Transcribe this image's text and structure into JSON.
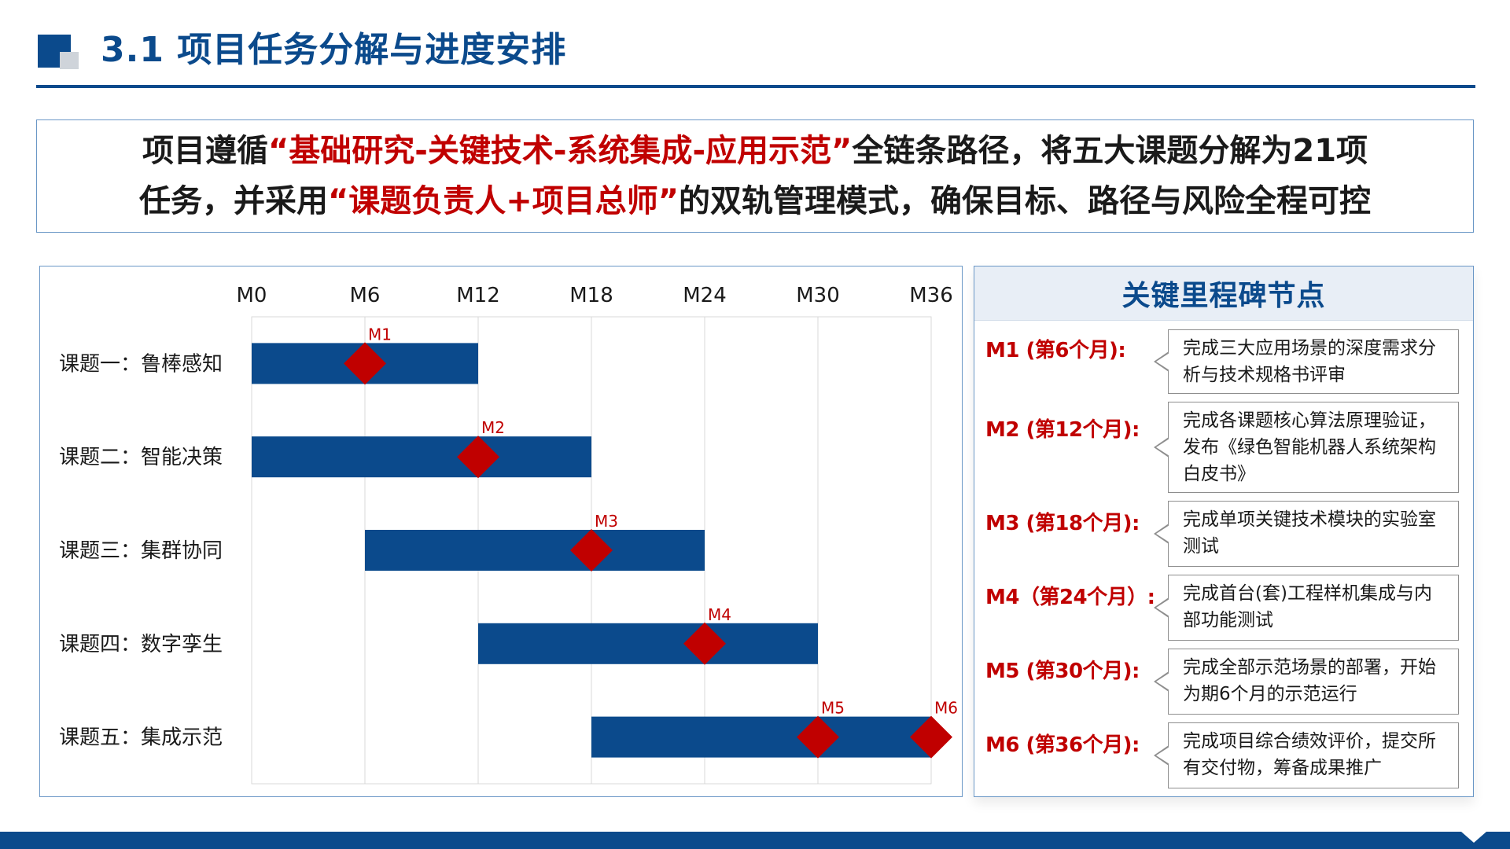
{
  "header": {
    "title": "3.1  项目任务分解与进度安排"
  },
  "intro": {
    "line1_prefix": "项目遵循",
    "line1_highlight": "“基础研究-关键技术-系统集成-应用示范”",
    "line1_suffix": "全链条路径，将五大课题分解为21项",
    "line2_prefix": "任务，并采用",
    "line2_highlight": "“课题负责人+项目总师”",
    "line2_suffix": "的双轨管理模式，确保目标、路径与风险全程可控"
  },
  "chart_data": {
    "type": "gantt",
    "x_ticks": [
      "M0",
      "M6",
      "M12",
      "M18",
      "M24",
      "M30",
      "M36"
    ],
    "xlim": [
      0,
      36
    ],
    "grid": true,
    "tasks": [
      {
        "label": "课题一：鲁棒感知",
        "start": 0,
        "end": 12
      },
      {
        "label": "课题二：智能决策",
        "start": 0,
        "end": 18
      },
      {
        "label": "课题三：集群协同",
        "start": 6,
        "end": 24
      },
      {
        "label": "课题四：数字孪生",
        "start": 12,
        "end": 30
      },
      {
        "label": "课题五：集成示范",
        "start": 18,
        "end": 36
      }
    ],
    "milestones": [
      {
        "name": "M1",
        "month": 6,
        "task_index": 0
      },
      {
        "name": "M2",
        "month": 12,
        "task_index": 1
      },
      {
        "name": "M3",
        "month": 18,
        "task_index": 2
      },
      {
        "name": "M4",
        "month": 24,
        "task_index": 3
      },
      {
        "name": "M5",
        "month": 30,
        "task_index": 4
      },
      {
        "name": "M6",
        "month": 36,
        "task_index": 4
      }
    ],
    "colors": {
      "bar": "#0b4a8c",
      "milestone": "#c00000",
      "milestone_label": "#c00000",
      "grid": "#d9d9d9"
    }
  },
  "milestone_panel": {
    "title": "关键里程碑节点",
    "items": [
      {
        "label": "M1 (第6个月):",
        "desc": "完成三大应用场景的深度需求分析与技术规格书评审"
      },
      {
        "label": "M2 (第12个月):",
        "desc": "完成各课题核心算法原理验证，发布《绿色智能机器人系统架构白皮书》"
      },
      {
        "label": "M3 (第18个月):",
        "desc": "完成单项关键技术模块的实验室测试"
      },
      {
        "label": "M4（第24个月）:",
        "desc": "完成首台(套)工程样机集成与内部功能测试"
      },
      {
        "label": "M5 (第30个月):",
        "desc": "完成全部示范场景的部署，开始为期6个月的示范运行"
      },
      {
        "label": "M6 (第36个月):",
        "desc": "完成项目综合绩效评价，提交所有交付物，筹备成果推广"
      }
    ]
  }
}
